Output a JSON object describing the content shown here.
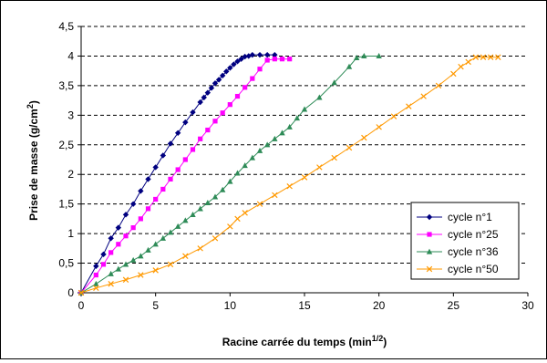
{
  "chart_data": {
    "type": "line",
    "title": "",
    "xlabel": "Racine carrée du temps (min",
    "xlabel_sup": "1/2",
    "xlabel_end": ")",
    "ylabel": "Prise de masse (g/cm",
    "ylabel_sup": "2",
    "ylabel_end": ")",
    "xlim": [
      0,
      30
    ],
    "ylim": [
      0,
      4.5
    ],
    "x_ticks": [
      "0",
      "5",
      "10",
      "15",
      "20",
      "25",
      "30"
    ],
    "y_ticks": [
      "0",
      "0,5",
      "1",
      "1,5",
      "2",
      "2,5",
      "3",
      "3,5",
      "4",
      "4,5"
    ],
    "grid": "horizontal dashed",
    "legend_position": "bottom-right",
    "series": [
      {
        "name": "cycle n°1",
        "color": "#000080",
        "marker": "diamond",
        "x": [
          0,
          1,
          1.5,
          2,
          2.5,
          3,
          3.5,
          4,
          4.5,
          5,
          5.5,
          6,
          6.5,
          7,
          7.5,
          8,
          8.25,
          8.5,
          8.75,
          9,
          9.25,
          9.5,
          9.75,
          10,
          10.25,
          10.5,
          10.75,
          11,
          11.25,
          11.5,
          12,
          12.5,
          13
        ],
        "y": [
          0,
          0.45,
          0.65,
          0.92,
          1.1,
          1.32,
          1.5,
          1.72,
          1.92,
          2.12,
          2.32,
          2.52,
          2.7,
          2.88,
          3.05,
          3.22,
          3.3,
          3.38,
          3.46,
          3.54,
          3.6,
          3.67,
          3.74,
          3.8,
          3.86,
          3.91,
          3.95,
          3.99,
          4.0,
          4.02,
          4.02,
          4.02,
          4.02
        ]
      },
      {
        "name": "cycle n°25",
        "color": "#ff00ff",
        "marker": "square",
        "x": [
          0,
          1,
          1.5,
          2,
          2.5,
          3,
          3.5,
          4,
          4.5,
          5,
          5.5,
          6,
          6.5,
          7,
          7.5,
          8,
          8.5,
          9,
          9.5,
          10,
          10.5,
          11,
          11.5,
          12,
          12.5,
          13,
          13.5,
          14
        ],
        "y": [
          0,
          0.3,
          0.48,
          0.68,
          0.82,
          0.96,
          1.1,
          1.25,
          1.42,
          1.58,
          1.75,
          1.92,
          2.08,
          2.25,
          2.42,
          2.6,
          2.75,
          2.9,
          3.04,
          3.18,
          3.32,
          3.47,
          3.62,
          3.78,
          3.93,
          3.95,
          3.95,
          3.95
        ]
      },
      {
        "name": "cycle n°36",
        "color": "#2e8b57",
        "marker": "triangle",
        "x": [
          0,
          1,
          2,
          2.5,
          3,
          3.5,
          4,
          4.5,
          5,
          5.5,
          6,
          6.5,
          7,
          7.5,
          8,
          8.5,
          9,
          9.5,
          10,
          10.5,
          11,
          11.5,
          12,
          12.5,
          13,
          13.5,
          14,
          14.5,
          15,
          16,
          17,
          18,
          18.5,
          19,
          20
        ],
        "y": [
          0,
          0.15,
          0.32,
          0.4,
          0.48,
          0.55,
          0.62,
          0.72,
          0.82,
          0.92,
          1.02,
          1.12,
          1.22,
          1.32,
          1.42,
          1.52,
          1.62,
          1.74,
          1.88,
          2.02,
          2.15,
          2.28,
          2.4,
          2.5,
          2.6,
          2.7,
          2.8,
          2.95,
          3.1,
          3.3,
          3.55,
          3.82,
          3.97,
          4.0,
          4.0
        ]
      },
      {
        "name": "cycle n°50",
        "color": "#ff9900",
        "marker": "x",
        "x": [
          0,
          1,
          2,
          3,
          4,
          5,
          6,
          7,
          8,
          9,
          10,
          10.5,
          11,
          12,
          13,
          14,
          15,
          16,
          17,
          18,
          19,
          20,
          21,
          22,
          23,
          24,
          25,
          25.5,
          26,
          26.5,
          27,
          27.5,
          28
        ],
        "y": [
          0,
          0.08,
          0.15,
          0.22,
          0.3,
          0.38,
          0.48,
          0.62,
          0.75,
          0.92,
          1.12,
          1.25,
          1.35,
          1.5,
          1.65,
          1.8,
          1.95,
          2.12,
          2.28,
          2.45,
          2.62,
          2.8,
          2.98,
          3.15,
          3.32,
          3.5,
          3.7,
          3.82,
          3.9,
          3.98,
          3.98,
          3.98,
          3.98
        ]
      }
    ]
  }
}
